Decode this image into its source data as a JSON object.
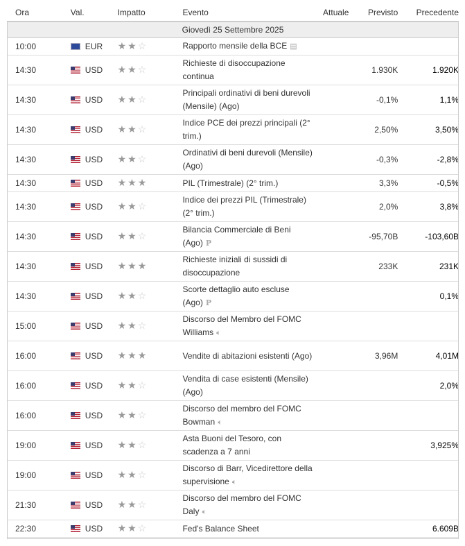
{
  "headers": {
    "ora": "Ora",
    "val": "Val.",
    "impatto": "Impatto",
    "evento": "Evento",
    "attuale": "Attuale",
    "previsto": "Previsto",
    "precedente": "Precedente"
  },
  "date": "Giovedì 25 Settembre 2025",
  "rows": [
    {
      "time": "10:00",
      "cur": "EUR",
      "flag": "eu",
      "stars": 2,
      "event": "Rapporto mensile della BCE",
      "icon": "report",
      "prev": "",
      "prec": ""
    },
    {
      "time": "14:30",
      "cur": "USD",
      "flag": "us",
      "stars": 2,
      "event": "Richieste di disoccupazione continua",
      "icon": "",
      "prev": "1.930K",
      "prec": "1.920K"
    },
    {
      "time": "14:30",
      "cur": "USD",
      "flag": "us",
      "stars": 2,
      "event": "Principali ordinativi di beni durevoli (Mensile) (Ago)",
      "icon": "",
      "prev": "-0,1%",
      "prec": "1,1%"
    },
    {
      "time": "14:30",
      "cur": "USD",
      "flag": "us",
      "stars": 2,
      "event": "Indice PCE dei prezzi principali (2° trim.)",
      "icon": "",
      "prev": "2,50%",
      "prec": "3,50%"
    },
    {
      "time": "14:30",
      "cur": "USD",
      "flag": "us",
      "stars": 2,
      "event": "Ordinativi di beni durevoli (Mensile) (Ago)",
      "icon": "",
      "prev": "-0,3%",
      "prec": "-2,8%"
    },
    {
      "time": "14:30",
      "cur": "USD",
      "flag": "us",
      "stars": 3,
      "event": "PIL (Trimestrale) (2° trim.)",
      "icon": "",
      "prev": "3,3%",
      "prec": "-0,5%"
    },
    {
      "time": "14:30",
      "cur": "USD",
      "flag": "us",
      "stars": 2,
      "event": "Indice dei prezzi PIL (Trimestrale) (2° trim.)",
      "icon": "",
      "prev": "2,0%",
      "prec": "3,8%"
    },
    {
      "time": "14:30",
      "cur": "USD",
      "flag": "us",
      "stars": 2,
      "event": "Bilancia Commerciale di Beni (Ago)",
      "icon": "preliminary",
      "prev": "-95,70B",
      "prec": "-103,60B"
    },
    {
      "time": "14:30",
      "cur": "USD",
      "flag": "us",
      "stars": 3,
      "event": "Richieste iniziali di sussidi di disoccupazione",
      "icon": "",
      "prev": "233K",
      "prec": "231K"
    },
    {
      "time": "14:30",
      "cur": "USD",
      "flag": "us",
      "stars": 2,
      "event": "Scorte dettaglio auto escluse (Ago)",
      "icon": "preliminary",
      "prev": "",
      "prec": "0,1%"
    },
    {
      "time": "15:00",
      "cur": "USD",
      "flag": "us",
      "stars": 2,
      "event": "Discorso del Membro del FOMC Williams",
      "icon": "speech",
      "prev": "",
      "prec": ""
    },
    {
      "time": "16:00",
      "cur": "USD",
      "flag": "us",
      "stars": 3,
      "event": "Vendite di abitazioni esistenti (Ago)",
      "icon": "",
      "prev": "3,96M",
      "prec": "4,01M"
    },
    {
      "time": "16:00",
      "cur": "USD",
      "flag": "us",
      "stars": 2,
      "event": "Vendita di case esistenti (Mensile) (Ago)",
      "icon": "",
      "prev": "",
      "prec": "2,0%"
    },
    {
      "time": "16:00",
      "cur": "USD",
      "flag": "us",
      "stars": 2,
      "event": "Discorso del membro del FOMC Bowman",
      "icon": "speech",
      "prev": "",
      "prec": ""
    },
    {
      "time": "19:00",
      "cur": "USD",
      "flag": "us",
      "stars": 2,
      "event": "Asta Buoni del Tesoro, con scadenza a 7 anni",
      "icon": "",
      "prev": "",
      "prec": "3,925%"
    },
    {
      "time": "19:00",
      "cur": "USD",
      "flag": "us",
      "stars": 2,
      "event": "Discorso di Barr, Vicedirettore della supervisione",
      "icon": "speech",
      "prev": "",
      "prec": ""
    },
    {
      "time": "21:30",
      "cur": "USD",
      "flag": "us",
      "stars": 2,
      "event": "Discorso del membro del FOMC Daly",
      "icon": "speech",
      "prev": "",
      "prec": ""
    },
    {
      "time": "22:30",
      "cur": "USD",
      "flag": "us",
      "stars": 2,
      "event": "Fed's Balance Sheet",
      "icon": "",
      "prev": "",
      "prec": "6.609B"
    }
  ],
  "single_rows": [
    0,
    5,
    17
  ]
}
